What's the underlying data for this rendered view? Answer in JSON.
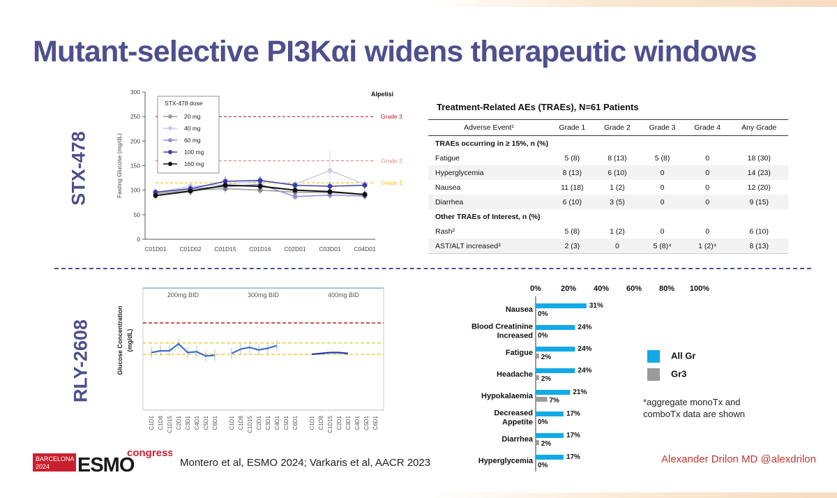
{
  "title": "Mutant-selective PI3Kαi widens therapeutic windows",
  "row_labels": {
    "top": "STX-478",
    "bottom": "RLY-2608"
  },
  "citation": "Montero et al, ESMO 2024; Varkaris et al, AACR 2023",
  "author": "Alexander Drilon MD @alexdrilon",
  "logo": {
    "city": "BARCELONA",
    "year": "2024",
    "brand": "ESMO",
    "word": "congress"
  },
  "chart_data": [
    {
      "type": "line",
      "ylabel": "Fasting Glucose (mg/dL)",
      "ylim": [
        0,
        300
      ],
      "yticks": [
        0,
        50,
        100,
        150,
        200,
        250,
        300
      ],
      "categories": [
        "C01D01",
        "C01D02",
        "C01D15",
        "C01D16",
        "C02D01",
        "C03D01",
        "C04D01"
      ],
      "legend_title": "STX-478 dose",
      "corner_label": "Alpelisi",
      "reference_lines": [
        {
          "label": "Grade 3",
          "y": 250,
          "color": "#b22222"
        },
        {
          "label": "Grade 2",
          "y": 160,
          "color": "#e38a8a"
        },
        {
          "label": "Grade 1",
          "y": 115,
          "color": "#f0c419"
        }
      ],
      "series": [
        {
          "name": "20 mg",
          "color": "#9a9a9a",
          "values": [
            93,
            100,
            103,
            100,
            96,
            95,
            92
          ]
        },
        {
          "name": "40 mg",
          "color": "#c9c9ea",
          "values": [
            95,
            108,
            112,
            118,
            112,
            140,
            112
          ]
        },
        {
          "name": "60 mg",
          "color": "#9090cf",
          "values": [
            96,
            103,
            107,
            112,
            87,
            90,
            88
          ]
        },
        {
          "name": "100 mg",
          "color": "#3a3faa",
          "values": [
            96,
            103,
            118,
            120,
            110,
            108,
            110
          ]
        },
        {
          "name": "160 mg",
          "color": "#111111",
          "values": [
            89,
            98,
            110,
            108,
            100,
            97,
            91
          ]
        }
      ]
    },
    {
      "type": "line",
      "ylabel": "Glucose Concentration (mg/dL)",
      "groups": [
        "200mg BID",
        "300mg BID",
        "400mg BID"
      ],
      "categories": [
        "C1D1",
        "C1D8",
        "C1D15",
        "C2D1",
        "C3D1",
        "C4D1",
        "C5D1",
        "C6D1"
      ],
      "series": [
        {
          "name": "200mg BID",
          "values": [
            66,
            68,
            68,
            76,
            66,
            67,
            62,
            63
          ]
        },
        {
          "name": "300mg BID",
          "values": [
            65,
            70,
            72,
            69,
            71,
            74,
            null,
            null
          ]
        },
        {
          "name": "400mg BID",
          "values": [
            64,
            65,
            66,
            66,
            65,
            null,
            null,
            null
          ]
        }
      ]
    },
    {
      "type": "bar",
      "orientation": "horizontal",
      "xticks": [
        "0%",
        "20%",
        "40%",
        "60%",
        "80%",
        "100%"
      ],
      "xlim": [
        0,
        100
      ],
      "categories": [
        "Nausea",
        "Blood Creatinine Increased",
        "Fatigue",
        "Headache",
        "Hypokalaemia",
        "Decreased Appetite",
        "Diarrhea",
        "Hyperglycemia"
      ],
      "series": [
        {
          "name": "All Gr",
          "color": "#12a9e6",
          "values": [
            31,
            24,
            24,
            24,
            21,
            17,
            17,
            17
          ],
          "labels": [
            "31%",
            "24%",
            "24%",
            "24%",
            "21%",
            "17%",
            "17%",
            "17%"
          ]
        },
        {
          "name": "Gr3",
          "color": "#9a9a9a",
          "values": [
            0,
            0,
            2,
            2,
            7,
            0,
            2,
            0
          ],
          "labels": [
            "0%",
            "0%",
            "2%",
            "2%",
            "7%",
            "0%",
            "2%",
            "0%"
          ]
        }
      ],
      "note": "*aggregate monoTx and\ncomboTx data are shown"
    }
  ],
  "table": {
    "title": "Treatment-Related AEs (TRAEs), N=61 Patients",
    "headers": [
      "Adverse Event¹",
      "Grade 1",
      "Grade 2",
      "Grade 3",
      "Grade 4",
      "Any Grade"
    ],
    "sections": [
      {
        "label": "TRAEs occurring in ≥ 15%, n (%)",
        "rows": [
          [
            "Fatigue",
            "5 (8)",
            "8 (13)",
            "5 (8)",
            "0",
            "18 (30)"
          ],
          [
            "Hyperglycemia",
            "8 (13)",
            "6 (10)",
            "0",
            "0",
            "14 (23)"
          ],
          [
            "Nausea",
            "11 (18)",
            "1 (2)",
            "0",
            "0",
            "12 (20)"
          ],
          [
            "Diarrhea",
            "6 (10)",
            "3 (5)",
            "0",
            "0",
            "9 (15)"
          ]
        ]
      },
      {
        "label": "Other TRAEs of Interest, n (%)",
        "rows": [
          [
            "Rash²",
            "5 (8)",
            "1 (2)",
            "0",
            "0",
            "6 (10)"
          ],
          [
            "AST/ALT increased³",
            "2 (3)",
            "0",
            "5 (8)⁴",
            "1 (2)⁴",
            "8 (13)"
          ]
        ]
      }
    ]
  }
}
